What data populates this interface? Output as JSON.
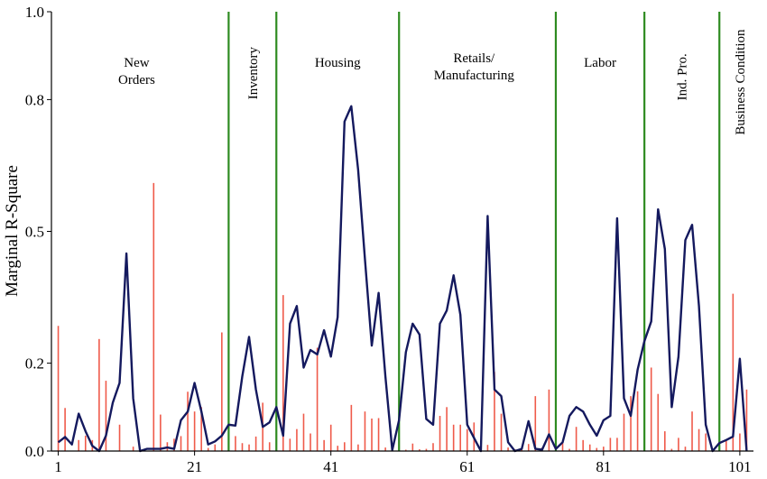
{
  "chart_data": {
    "type": "bar+line",
    "ylabel": "Marginal R-Square",
    "xlim": [
      0,
      103
    ],
    "ylim": [
      0,
      1.0
    ],
    "yticks": [
      0.0,
      0.2,
      0.5,
      0.8,
      1.0
    ],
    "xticks": [
      1,
      21,
      41,
      61,
      81,
      101
    ],
    "colors": {
      "bars": "#ef5a4a",
      "line": "#14195e",
      "dividers": "#2e8b20"
    },
    "group_dividers": [
      26,
      33,
      51,
      74,
      87,
      98
    ],
    "groups": [
      {
        "label": "New\nOrders",
        "x": 12.5,
        "y_top": 0.875,
        "orientation": "horizontal"
      },
      {
        "label": "Inventory",
        "x": 29.5,
        "y_top": 0.92,
        "orientation": "vertical"
      },
      {
        "label": "Housing",
        "x": 42,
        "y_top": 0.875,
        "orientation": "horizontal"
      },
      {
        "label": "Retails/\nManufacturing",
        "x": 62,
        "y_top": 0.885,
        "orientation": "horizontal"
      },
      {
        "label": "Labor",
        "x": 80.5,
        "y_top": 0.875,
        "orientation": "horizontal"
      },
      {
        "label": "Ind. Pro.",
        "x": 92.5,
        "y_top": 0.905,
        "orientation": "vertical"
      },
      {
        "label": "Business Condition",
        "x": 101,
        "y_top": 0.96,
        "orientation": "vertical"
      }
    ],
    "bars": {
      "x": [
        1,
        2,
        3,
        4,
        5,
        6,
        7,
        8,
        9,
        10,
        11,
        12,
        13,
        14,
        15,
        16,
        17,
        18,
        19,
        20,
        21,
        22,
        23,
        24,
        25,
        26,
        27,
        28,
        29,
        30,
        31,
        32,
        33,
        34,
        35,
        36,
        37,
        38,
        39,
        40,
        41,
        42,
        43,
        44,
        45,
        46,
        47,
        48,
        49,
        50,
        51,
        52,
        53,
        54,
        55,
        56,
        57,
        58,
        59,
        60,
        61,
        62,
        63,
        64,
        65,
        66,
        67,
        68,
        69,
        70,
        71,
        72,
        73,
        74,
        75,
        76,
        77,
        78,
        79,
        80,
        81,
        82,
        83,
        84,
        85,
        86,
        87,
        88,
        89,
        90,
        91,
        92,
        93,
        94,
        95,
        96,
        97,
        98,
        99,
        100,
        101,
        102
      ],
      "values": [
        0.285,
        0.098,
        0.0,
        0.025,
        0.035,
        0.025,
        0.255,
        0.16,
        0.0,
        0.06,
        0.0,
        0.01,
        0.0,
        0.0,
        0.61,
        0.083,
        0.02,
        0.028,
        0.034,
        0.135,
        0.09,
        0.1,
        0.007,
        0.015,
        0.27,
        0.068,
        0.034,
        0.018,
        0.015,
        0.033,
        0.11,
        0.02,
        0.05,
        0.355,
        0.028,
        0.05,
        0.085,
        0.04,
        0.235,
        0.025,
        0.06,
        0.012,
        0.02,
        0.105,
        0.015,
        0.09,
        0.074,
        0.075,
        0.008,
        0.005,
        0.03,
        0.003,
        0.017,
        0.004,
        0.005,
        0.018,
        0.08,
        0.1,
        0.06,
        0.06,
        0.05,
        0.065,
        0.015,
        0.014,
        0.18,
        0.085,
        0.008,
        0.004,
        0.003,
        0.016,
        0.125,
        0.008,
        0.14,
        0.045,
        0.02,
        0.005,
        0.055,
        0.025,
        0.015,
        0.007,
        0.01,
        0.03,
        0.03,
        0.085,
        0.125,
        0.136,
        0.017,
        0.19,
        0.13,
        0.045,
        0.005,
        0.03,
        0.01,
        0.09,
        0.05,
        0.04,
        0.0,
        0.012,
        0.025,
        0.358,
        0.04,
        0.14
      ]
    },
    "line": {
      "x": [
        1,
        2,
        3,
        4,
        5,
        6,
        7,
        8,
        9,
        10,
        11,
        12,
        13,
        14,
        15,
        16,
        17,
        18,
        19,
        20,
        21,
        22,
        23,
        24,
        25,
        26,
        27,
        28,
        29,
        30,
        31,
        32,
        33,
        34,
        35,
        36,
        37,
        38,
        39,
        40,
        41,
        42,
        43,
        44,
        45,
        46,
        47,
        48,
        49,
        50,
        51,
        52,
        53,
        54,
        55,
        56,
        57,
        58,
        59,
        60,
        61,
        62,
        63,
        64,
        65,
        66,
        67,
        68,
        69,
        70,
        71,
        72,
        73,
        74,
        75,
        76,
        77,
        78,
        79,
        80,
        81,
        82,
        83,
        84,
        85,
        86,
        87,
        88,
        89,
        90,
        91,
        92,
        93,
        94,
        95,
        96,
        97,
        98,
        99,
        100,
        101,
        102
      ],
      "values": [
        0.02,
        0.032,
        0.015,
        0.085,
        0.045,
        0.012,
        0.0,
        0.035,
        0.11,
        0.155,
        0.45,
        0.12,
        0.0,
        0.005,
        0.005,
        0.005,
        0.008,
        0.005,
        0.07,
        0.09,
        0.155,
        0.09,
        0.015,
        0.022,
        0.035,
        0.06,
        0.058,
        0.17,
        0.26,
        0.14,
        0.055,
        0.065,
        0.1,
        0.035,
        0.29,
        0.33,
        0.19,
        0.23,
        0.22,
        0.275,
        0.215,
        0.305,
        0.75,
        0.785,
        0.64,
        0.435,
        0.24,
        0.36,
        0.17,
        0.002,
        0.07,
        0.225,
        0.29,
        0.265,
        0.073,
        0.06,
        0.29,
        0.32,
        0.4,
        0.31,
        0.06,
        0.03,
        0.0,
        0.535,
        0.14,
        0.125,
        0.02,
        0.0,
        0.005,
        0.068,
        0.005,
        0.003,
        0.038,
        0.005,
        0.02,
        0.08,
        0.1,
        0.09,
        0.06,
        0.035,
        0.07,
        0.08,
        0.53,
        0.12,
        0.08,
        0.185,
        0.25,
        0.295,
        0.55,
        0.46,
        0.1,
        0.215,
        0.48,
        0.515,
        0.33,
        0.06,
        0.0,
        0.018,
        0.025,
        0.033,
        0.21,
        0.0
      ]
    }
  }
}
